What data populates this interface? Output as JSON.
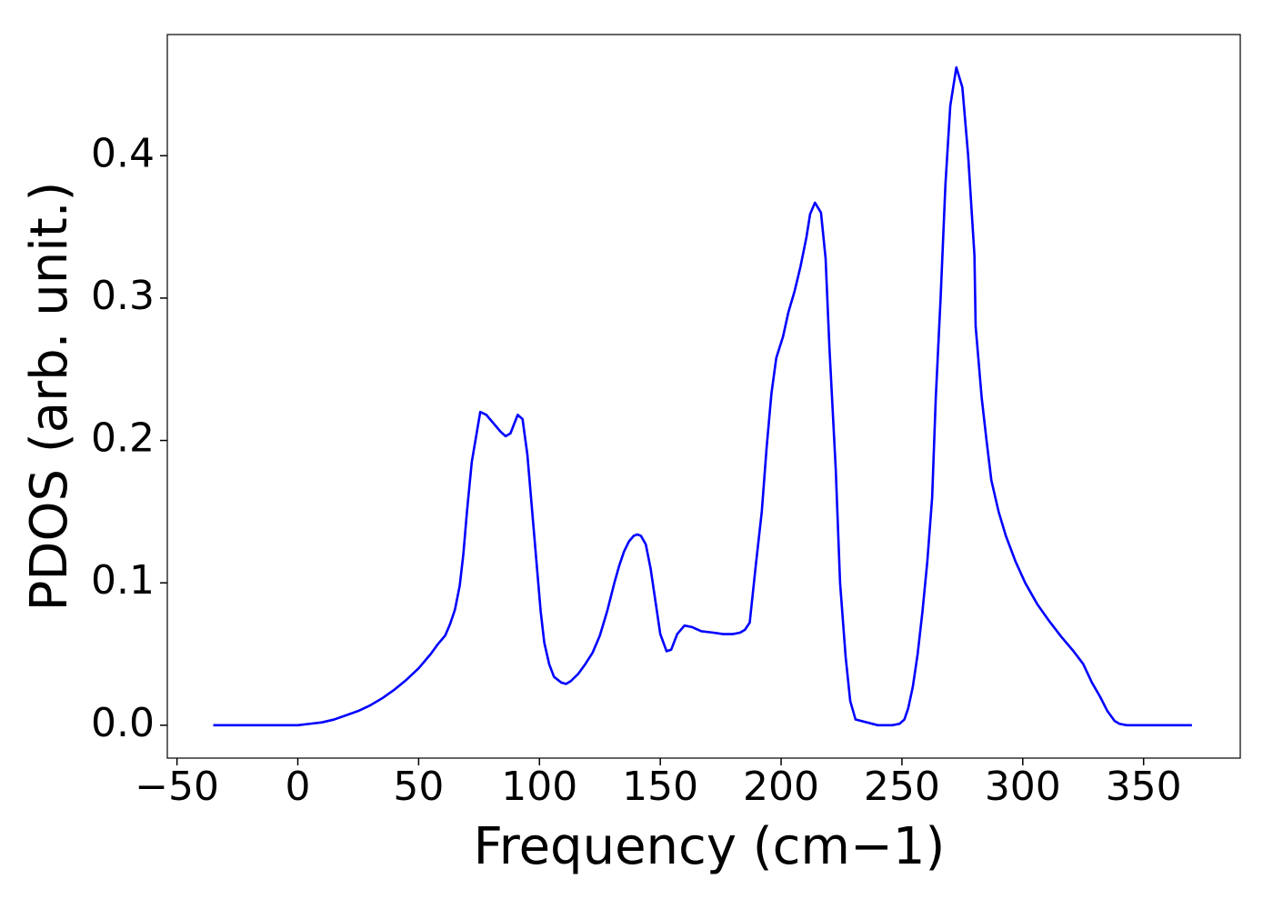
{
  "chart_data": {
    "type": "line",
    "xlabel": "Frequency (cm−1)",
    "ylabel": "PDOS (arb. unit.)",
    "xlim": [
      -54,
      390
    ],
    "ylim": [
      -0.0231,
      0.4851
    ],
    "xticks": [
      {
        "value": -50,
        "label": "−50"
      },
      0,
      50,
      100,
      150,
      200,
      250,
      300,
      350
    ],
    "yticks": [
      {
        "value": 0,
        "label": "0.0"
      },
      0.1,
      0.2,
      0.3,
      0.4
    ],
    "grid": false,
    "x": [
      -35,
      -20,
      -10,
      0,
      5,
      10,
      15,
      20,
      25,
      30,
      35,
      40,
      45,
      50,
      55,
      58,
      61,
      63,
      65,
      67,
      68.5,
      70,
      72,
      75.5,
      78,
      81,
      84,
      86,
      88,
      91,
      93,
      95,
      97,
      99,
      100.5,
      102,
      104,
      106,
      109,
      111,
      113,
      116,
      119,
      122,
      125,
      128,
      131,
      133,
      135,
      137,
      139,
      140.5,
      142,
      144,
      146,
      148,
      150,
      152.6,
      154.5,
      157,
      160,
      163,
      167,
      172,
      176,
      180,
      183,
      185,
      187,
      189.5,
      192,
      194,
      196,
      198,
      200.8,
      203,
      205.6,
      208,
      210.5,
      212,
      214,
      216.5,
      218.4,
      220,
      222.6,
      224.4,
      226.7,
      228.6,
      230.8,
      240,
      246,
      249,
      251,
      252.6,
      254.5,
      256.5,
      258.5,
      260.5,
      262.5,
      264,
      266,
      268,
      270,
      272.5,
      275,
      277.4,
      280,
      280.5,
      283,
      285,
      287,
      290,
      293,
      297,
      301,
      306,
      311,
      316,
      321,
      325,
      328.6,
      332,
      335,
      338,
      340,
      343,
      346,
      350,
      360,
      370
    ],
    "series": [
      {
        "name": "PDOS",
        "color": "#0000ff",
        "values": [
          0,
          0,
          0,
          0,
          0.001,
          0.002,
          0.004,
          0.007,
          0.01,
          0.014,
          0.019,
          0.025,
          0.032,
          0.04,
          0.05,
          0.057,
          0.063,
          0.071,
          0.081,
          0.098,
          0.12,
          0.15,
          0.185,
          0.22,
          0.218,
          0.212,
          0.206,
          0.203,
          0.205,
          0.218,
          0.215,
          0.19,
          0.15,
          0.11,
          0.08,
          0.058,
          0.043,
          0.034,
          0.03,
          0.029,
          0.031,
          0.036,
          0.043,
          0.051,
          0.063,
          0.08,
          0.1,
          0.112,
          0.122,
          0.129,
          0.133,
          0.134,
          0.133,
          0.127,
          0.11,
          0.087,
          0.064,
          0.052,
          0.053,
          0.064,
          0.07,
          0.069,
          0.066,
          0.065,
          0.064,
          0.064,
          0.065,
          0.067,
          0.072,
          0.112,
          0.15,
          0.195,
          0.233,
          0.258,
          0.273,
          0.29,
          0.305,
          0.322,
          0.343,
          0.359,
          0.367,
          0.36,
          0.328,
          0.265,
          0.18,
          0.1,
          0.048,
          0.017,
          0.004,
          0,
          0,
          0.001,
          0.004,
          0.012,
          0.027,
          0.05,
          0.08,
          0.115,
          0.16,
          0.23,
          0.3,
          0.38,
          0.435,
          0.462,
          0.448,
          0.4,
          0.33,
          0.28,
          0.23,
          0.2,
          0.172,
          0.15,
          0.133,
          0.115,
          0.1,
          0.085,
          0.073,
          0.062,
          0.052,
          0.043,
          0.03,
          0.02,
          0.01,
          0.003,
          0.001,
          0,
          0,
          0,
          0,
          0
        ]
      }
    ]
  }
}
